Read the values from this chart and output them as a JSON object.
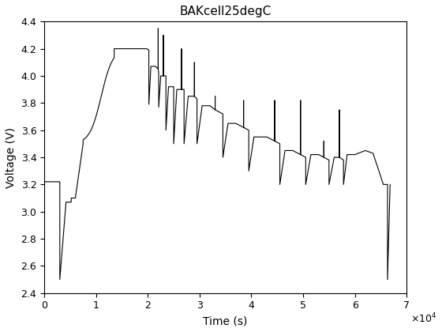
{
  "title": "BAKcell25degC",
  "xlabel": "Time (s)",
  "ylabel": "Voltage (V)",
  "xlim": [
    0,
    70000
  ],
  "ylim": [
    2.4,
    4.4
  ],
  "xtick_labels": [
    "0",
    "1",
    "2",
    "3",
    "4",
    "5",
    "6",
    "7"
  ],
  "yticks": [
    2.4,
    2.6,
    2.8,
    3.0,
    3.2,
    3.4,
    3.6,
    3.8,
    4.0,
    4.2,
    4.4
  ],
  "line_color": "#000000",
  "line_width": 0.8,
  "bg_color": "#ffffff",
  "figsize": [
    5.6,
    4.2
  ],
  "dpi": 100
}
